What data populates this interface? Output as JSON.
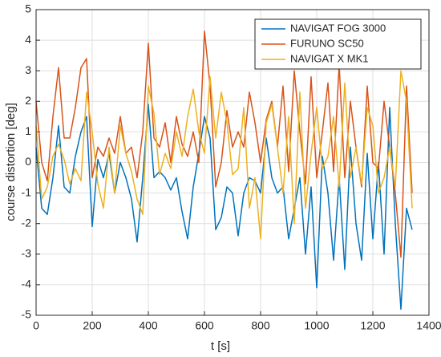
{
  "chart_data": {
    "type": "line",
    "xlabel": "t [s]",
    "ylabel": "course distortion [deg]",
    "x": [
      0,
      20,
      40,
      60,
      80,
      100,
      120,
      140,
      160,
      180,
      200,
      220,
      240,
      260,
      280,
      300,
      320,
      340,
      360,
      380,
      400,
      420,
      440,
      460,
      480,
      500,
      520,
      540,
      560,
      580,
      600,
      620,
      640,
      660,
      680,
      700,
      720,
      740,
      760,
      780,
      800,
      820,
      840,
      860,
      880,
      900,
      920,
      940,
      960,
      980,
      1000,
      1020,
      1040,
      1060,
      1080,
      1100,
      1120,
      1140,
      1160,
      1180,
      1200,
      1220,
      1240,
      1260,
      1280,
      1300,
      1320,
      1340
    ],
    "series": [
      {
        "name": "NAVIGAT FOG 3000",
        "color": "#0072bd",
        "values": [
          0.5,
          -1.5,
          -1.7,
          -0.5,
          1.2,
          -0.8,
          -1.0,
          0.2,
          1.0,
          1.5,
          -2.1,
          0.1,
          -0.5,
          0.3,
          -1.0,
          0.0,
          -0.5,
          -1.2,
          -2.6,
          -0.5,
          1.9,
          -0.5,
          -0.3,
          -0.5,
          -0.9,
          -0.5,
          -1.6,
          -2.5,
          -0.8,
          0.3,
          1.5,
          0.8,
          -2.2,
          -1.8,
          -0.8,
          -1.0,
          -2.4,
          -1.0,
          -0.5,
          -0.6,
          -1.0,
          0.8,
          -0.5,
          -1.0,
          -0.8,
          -2.5,
          -1.5,
          -0.5,
          -3.0,
          -0.8,
          -4.1,
          0.2,
          -1.0,
          -3.2,
          -0.5,
          -3.5,
          0.5,
          -2.0,
          -3.2,
          0.3,
          -2.5,
          0.0,
          -3.0,
          1.8,
          -2.0,
          -4.8,
          -1.5,
          -2.2
        ]
      },
      {
        "name": "FURUNO SC50",
        "color": "#d95319",
        "values": [
          2.0,
          0.0,
          -0.6,
          1.5,
          3.1,
          0.8,
          0.8,
          1.8,
          3.1,
          3.4,
          -0.5,
          0.5,
          0.2,
          0.8,
          0.3,
          1.5,
          0.3,
          0.5,
          -0.5,
          1.0,
          3.9,
          0.8,
          0.5,
          1.3,
          0.0,
          1.5,
          0.6,
          0.2,
          1.0,
          0.0,
          4.3,
          2.5,
          -0.8,
          0.0,
          1.7,
          0.5,
          1.0,
          0.5,
          2.3,
          1.3,
          0.0,
          1.4,
          2.0,
          0.5,
          2.5,
          -0.3,
          3.0,
          1.0,
          -0.7,
          2.8,
          -0.5,
          1.0,
          2.6,
          -0.3,
          3.2,
          -0.5,
          2.0,
          0.5,
          -0.8,
          2.5,
          0.0,
          -0.2,
          2.0,
          0.5,
          -1.0,
          -3.1,
          2.5,
          -1.0
        ]
      },
      {
        "name": "NAVIGAT X MK1",
        "color": "#edb120",
        "values": [
          1.2,
          -1.2,
          -0.8,
          0.2,
          0.6,
          0.1,
          -0.7,
          -0.2,
          -0.6,
          2.3,
          1.0,
          -0.7,
          -1.5,
          0.5,
          -1.0,
          1.2,
          0.3,
          -0.3,
          -1.2,
          -1.7,
          2.5,
          1.6,
          -0.4,
          0.3,
          -0.2,
          1.0,
          0.2,
          1.5,
          2.4,
          1.0,
          0.3,
          2.8,
          0.8,
          2.3,
          1.3,
          -0.4,
          -0.2,
          1.8,
          -1.5,
          -0.5,
          -2.5,
          1.3,
          1.9,
          0.5,
          -1.0,
          1.5,
          -2.0,
          2.3,
          -1.5,
          0.3,
          1.8,
          -0.2,
          0.2,
          1.5,
          -0.8,
          2.6,
          -0.5,
          0.5,
          -0.7,
          1.8,
          1.2,
          -1.0,
          -0.5,
          0.5,
          -0.8,
          3.0,
          2.0,
          -1.5
        ]
      }
    ],
    "xlim": [
      0,
      1400
    ],
    "xticks": [
      0,
      200,
      400,
      600,
      800,
      1000,
      1200,
      1400
    ],
    "ylim": [
      -5,
      5
    ],
    "yticks": [
      -5,
      -4,
      -3,
      -2,
      -1,
      0,
      1,
      2,
      3,
      4,
      5
    ],
    "grid": true,
    "legend": "upper right"
  }
}
